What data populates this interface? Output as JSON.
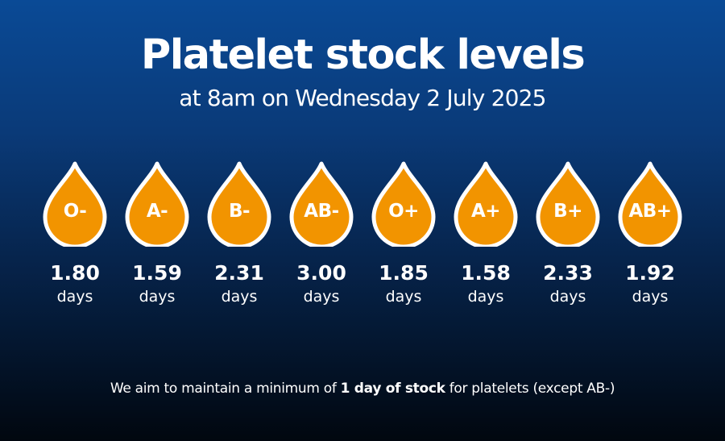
{
  "header": {
    "title": "Platelet stock levels",
    "subtitle": "at 8am on Wednesday 2 July 2025"
  },
  "colors": {
    "drop_fill": "#f29400",
    "drop_outline": "#ffffff"
  },
  "groups": [
    {
      "label": "O-",
      "value": "1.80",
      "unit": "days"
    },
    {
      "label": "A-",
      "value": "1.59",
      "unit": "days"
    },
    {
      "label": "B-",
      "value": "2.31",
      "unit": "days"
    },
    {
      "label": "AB-",
      "value": "3.00",
      "unit": "days"
    },
    {
      "label": "O+",
      "value": "1.85",
      "unit": "days"
    },
    {
      "label": "A+",
      "value": "1.58",
      "unit": "days"
    },
    {
      "label": "B+",
      "value": "2.33",
      "unit": "days"
    },
    {
      "label": "AB+",
      "value": "1.92",
      "unit": "days"
    }
  ],
  "footnote": {
    "before": "We aim to maintain a minimum of ",
    "emphasis": "1 day of stock",
    "after": " for platelets (except AB-)"
  }
}
